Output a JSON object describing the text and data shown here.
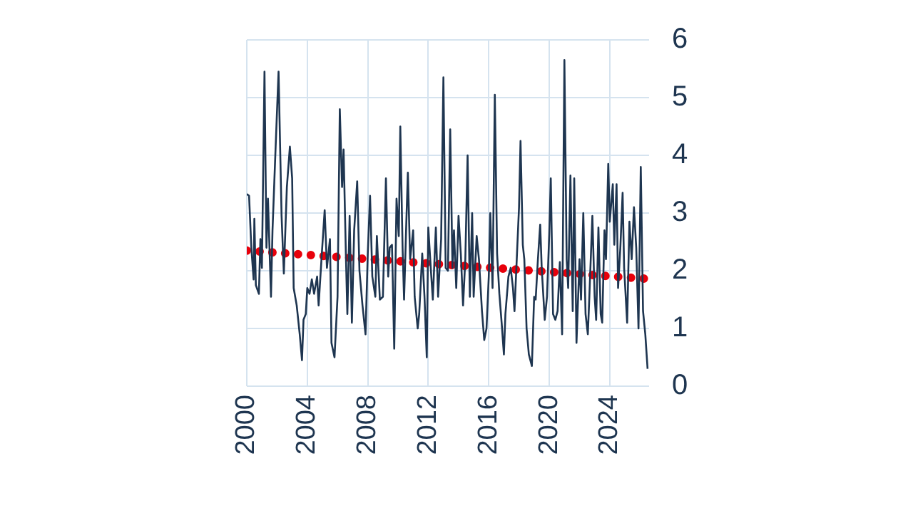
{
  "chart_data": {
    "type": "line",
    "xlim": [
      2000,
      2026.6
    ],
    "xticks": [
      2000,
      2004,
      2008,
      2012,
      2016,
      2020,
      2024
    ],
    "ylim": [
      0,
      6
    ],
    "yticks": [
      0,
      1,
      2,
      3,
      4,
      5,
      6
    ],
    "grid": true,
    "legend": false,
    "marker": "none",
    "series": [
      {
        "color": "#1e3550",
        "line_style": "solid",
        "x": [
          2000.0,
          2000.15,
          2000.3,
          2000.45,
          2000.5,
          2000.6,
          2000.8,
          2000.9,
          2001.0,
          2001.17,
          2001.3,
          2001.4,
          2001.6,
          2001.7,
          2001.9,
          2002.1,
          2002.3,
          2002.45,
          2002.65,
          2002.85,
          2003.0,
          2003.1,
          2003.3,
          2003.5,
          2003.65,
          2003.75,
          2003.9,
          2004.0,
          2004.15,
          2004.3,
          2004.45,
          2004.65,
          2004.75,
          2004.95,
          2005.15,
          2005.3,
          2005.5,
          2005.6,
          2005.8,
          2006.0,
          2006.15,
          2006.3,
          2006.4,
          2006.55,
          2006.65,
          2006.8,
          2006.95,
          2007.1,
          2007.3,
          2007.45,
          2007.65,
          2007.85,
          2008.0,
          2008.15,
          2008.3,
          2008.5,
          2008.6,
          2008.8,
          2009.0,
          2009.2,
          2009.35,
          2009.45,
          2009.6,
          2009.75,
          2009.9,
          2010.05,
          2010.15,
          2010.3,
          2010.4,
          2010.55,
          2010.65,
          2010.8,
          2011.0,
          2011.1,
          2011.3,
          2011.4,
          2011.6,
          2011.75,
          2011.9,
          2012.0,
          2012.2,
          2012.3,
          2012.5,
          2012.65,
          2012.85,
          2013.0,
          2013.15,
          2013.3,
          2013.45,
          2013.6,
          2013.7,
          2013.85,
          2014.0,
          2014.15,
          2014.3,
          2014.45,
          2014.6,
          2014.75,
          2014.9,
          2015.0,
          2015.2,
          2015.35,
          2015.55,
          2015.7,
          2015.85,
          2016.0,
          2016.1,
          2016.25,
          2016.4,
          2016.55,
          2016.7,
          2016.85,
          2017.0,
          2017.1,
          2017.3,
          2017.45,
          2017.6,
          2017.7,
          2017.85,
          2018.0,
          2018.1,
          2018.25,
          2018.35,
          2018.5,
          2018.65,
          2018.85,
          2019.0,
          2019.1,
          2019.25,
          2019.4,
          2019.5,
          2019.7,
          2019.85,
          2020.0,
          2020.1,
          2020.25,
          2020.4,
          2020.55,
          2020.7,
          2020.85,
          2021.0,
          2021.15,
          2021.25,
          2021.4,
          2021.55,
          2021.65,
          2021.8,
          2022.0,
          2022.1,
          2022.25,
          2022.4,
          2022.55,
          2022.65,
          2022.85,
          2023.0,
          2023.1,
          2023.25,
          2023.4,
          2023.5,
          2023.65,
          2023.75,
          2023.9,
          2024.0,
          2024.2,
          2024.3,
          2024.45,
          2024.55,
          2024.7,
          2024.85,
          2024.95,
          2025.15,
          2025.3,
          2025.45,
          2025.6,
          2025.75,
          2025.9,
          2026.05,
          2026.2,
          2026.35,
          2026.5
        ],
        "values": [
          3.33,
          3.3,
          2.4,
          1.85,
          2.9,
          1.75,
          1.6,
          2.55,
          2.05,
          5.45,
          2.4,
          3.25,
          1.55,
          2.7,
          4.1,
          5.45,
          2.95,
          1.95,
          3.45,
          4.15,
          3.6,
          1.7,
          1.4,
          0.9,
          0.45,
          1.15,
          1.25,
          1.7,
          1.6,
          1.85,
          1.6,
          1.9,
          1.4,
          2.25,
          3.05,
          2.05,
          2.55,
          0.75,
          0.5,
          1.55,
          4.8,
          3.45,
          4.1,
          2.3,
          1.25,
          2.95,
          1.1,
          2.7,
          3.55,
          2.0,
          1.4,
          0.9,
          2.3,
          3.3,
          1.9,
          1.55,
          2.6,
          1.5,
          1.55,
          3.6,
          1.9,
          2.4,
          2.45,
          0.65,
          3.25,
          2.6,
          4.5,
          2.4,
          1.5,
          2.85,
          3.7,
          2.2,
          2.7,
          1.55,
          1.0,
          1.25,
          2.3,
          1.55,
          0.5,
          2.75,
          1.9,
          1.5,
          2.75,
          1.55,
          2.55,
          5.35,
          2.05,
          2.0,
          4.45,
          2.05,
          2.7,
          1.7,
          2.95,
          2.3,
          1.4,
          2.2,
          4.0,
          1.55,
          3.0,
          1.55,
          2.6,
          2.2,
          1.3,
          0.8,
          1.0,
          1.9,
          3.0,
          1.7,
          5.05,
          2.3,
          1.6,
          1.1,
          0.55,
          1.25,
          1.9,
          2.05,
          1.7,
          1.3,
          2.2,
          3.1,
          4.25,
          2.45,
          2.2,
          1.0,
          0.55,
          0.35,
          1.55,
          1.5,
          2.2,
          2.8,
          2.05,
          1.15,
          1.55,
          2.65,
          3.6,
          1.25,
          1.15,
          1.3,
          2.15,
          0.9,
          5.65,
          2.2,
          1.7,
          3.65,
          1.3,
          3.6,
          0.75,
          2.2,
          1.5,
          3.0,
          1.25,
          0.9,
          1.55,
          2.95,
          1.55,
          1.15,
          2.75,
          1.25,
          1.1,
          2.7,
          2.2,
          3.85,
          2.85,
          3.5,
          2.45,
          3.5,
          1.7,
          2.4,
          3.35,
          2.05,
          1.1,
          2.85,
          2.2,
          3.1,
          2.4,
          1.0,
          3.8,
          1.3,
          0.9,
          0.3
        ]
      },
      {
        "color": "#e8000b",
        "line_style": "dotted",
        "x": [
          2000,
          2026.5
        ],
        "values": [
          2.35,
          1.86
        ]
      }
    ]
  }
}
